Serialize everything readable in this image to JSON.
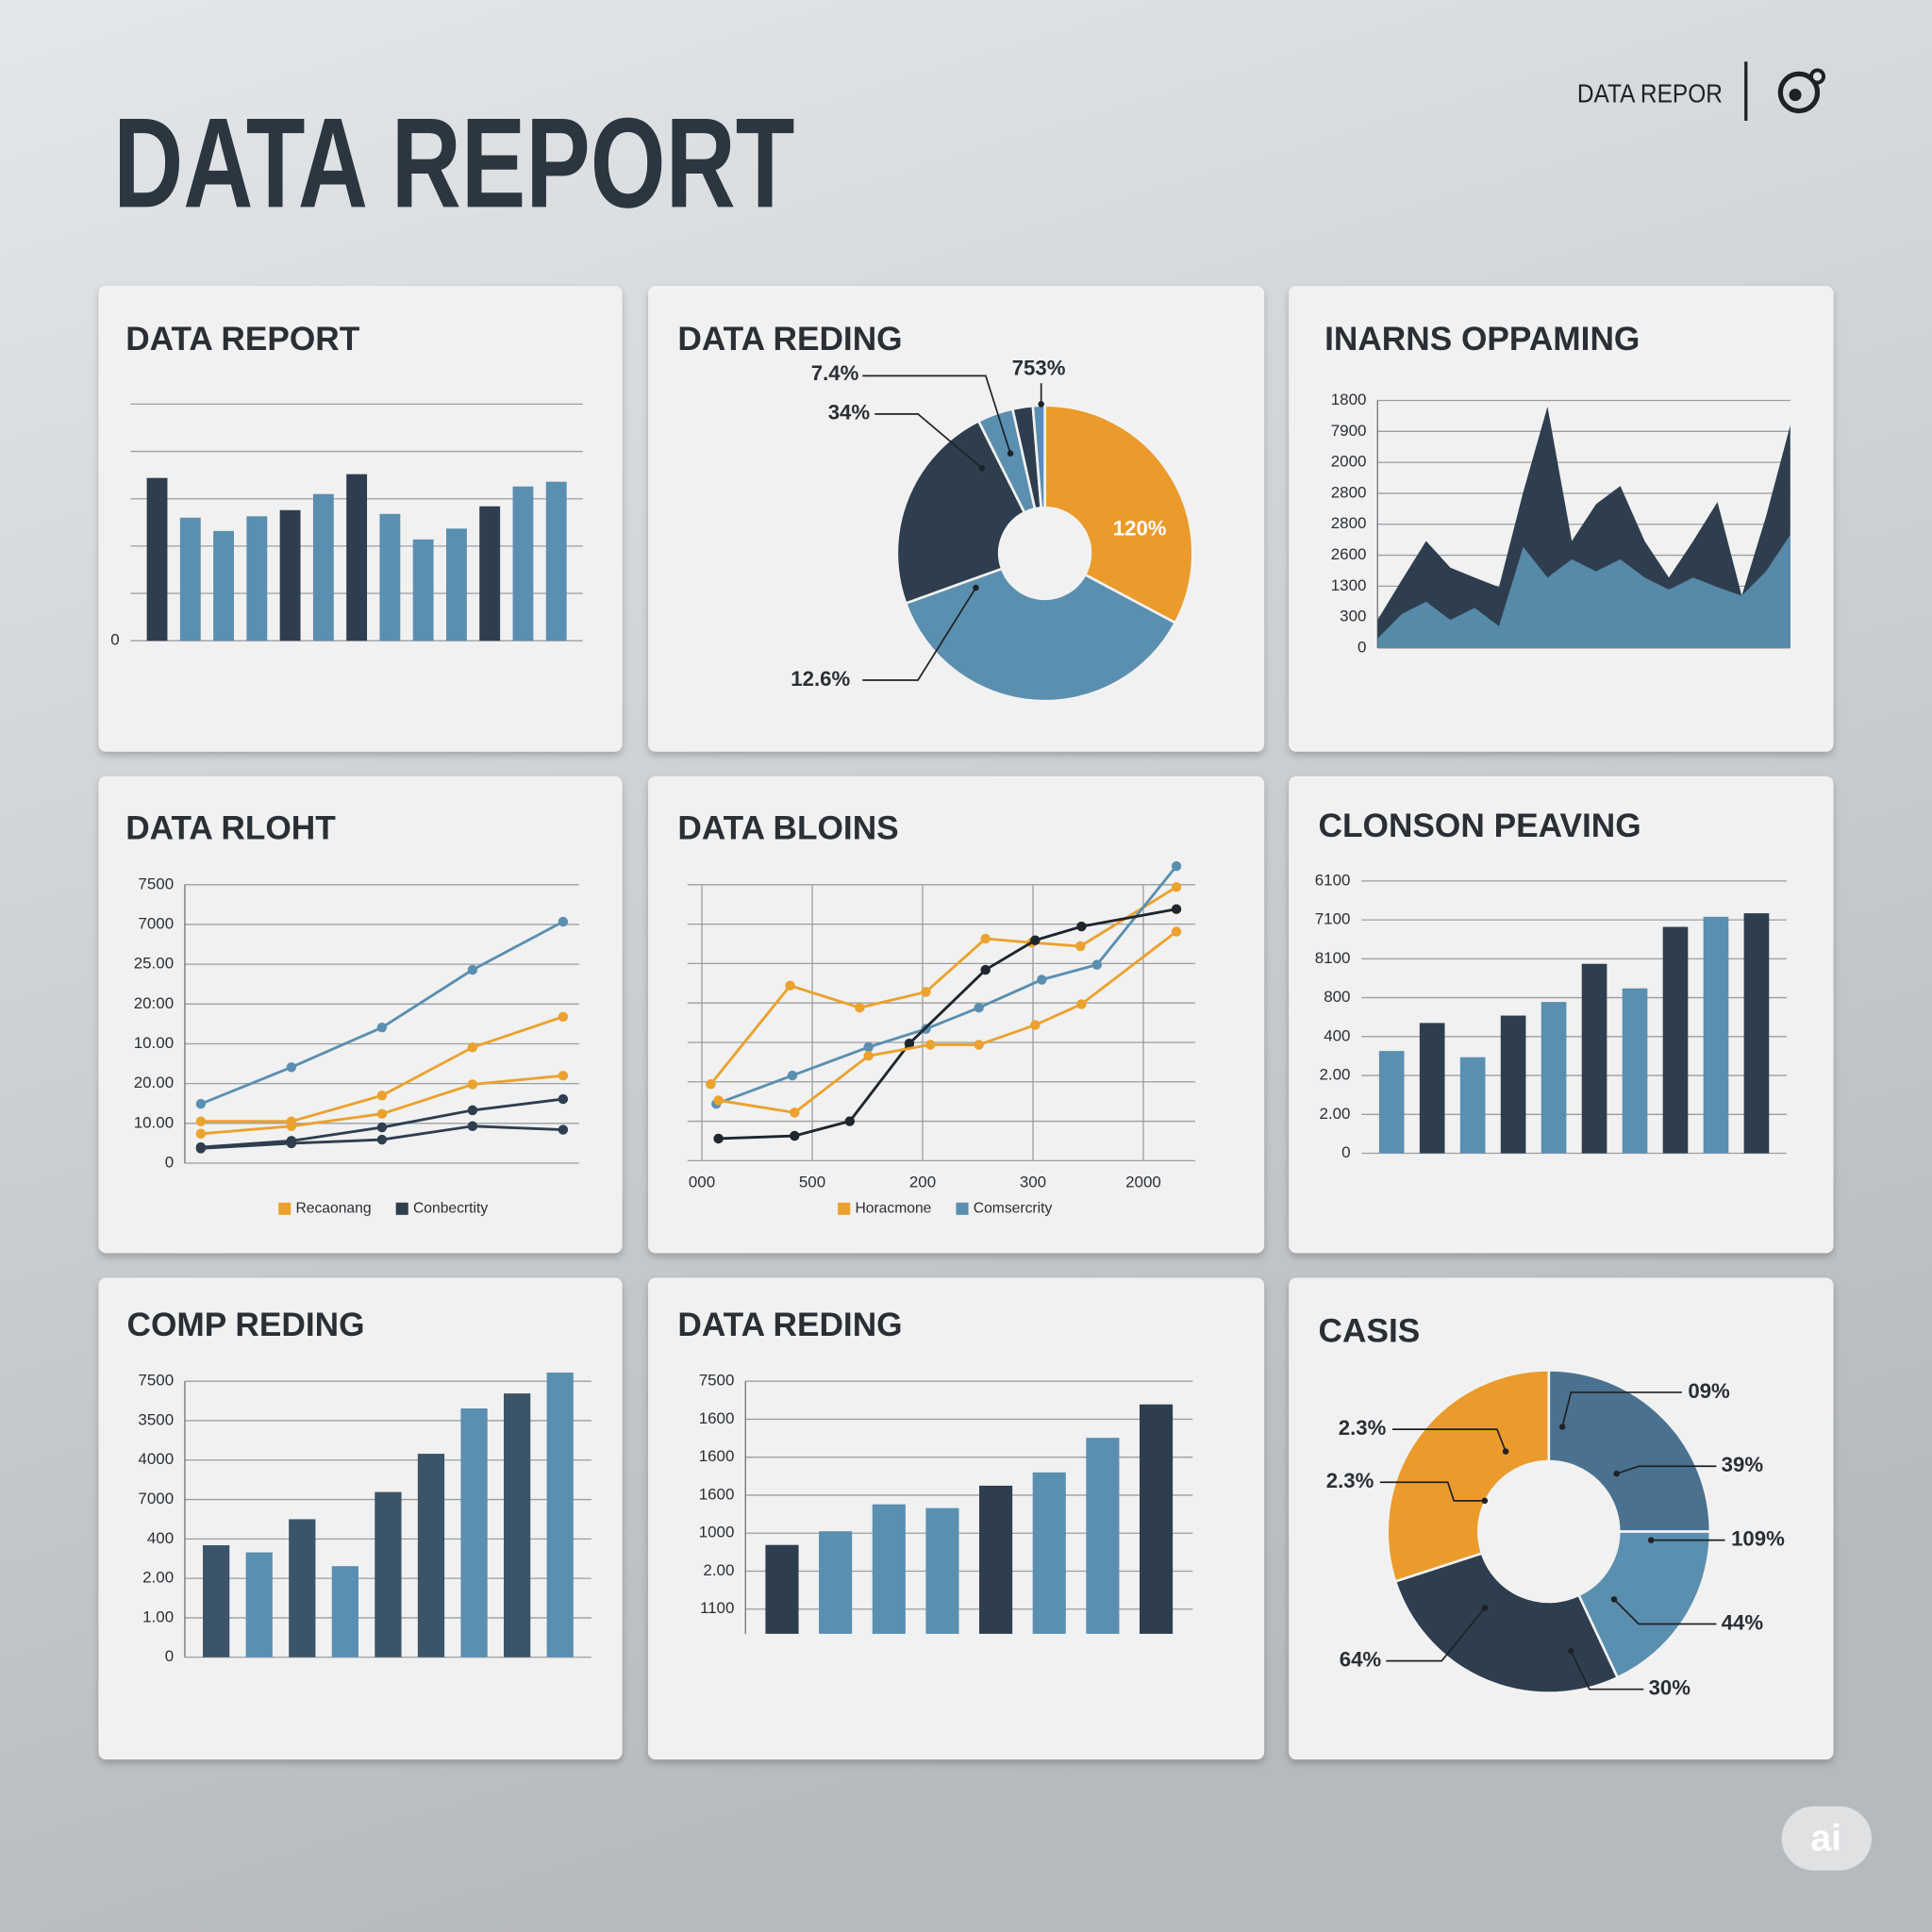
{
  "header": {
    "title": "DATA REPORT",
    "brand": "DATA REPOR",
    "badge": "ai"
  },
  "chart_data": [
    {
      "type": "bar",
      "title": "DATA REPORT",
      "categories": [
        null,
        null,
        null,
        null,
        null,
        null,
        null,
        null,
        null,
        null,
        null,
        null,
        null
      ],
      "values": [
        3.44,
        2.6,
        2.32,
        2.63,
        2.76,
        3.1,
        3.52,
        2.68,
        2.14,
        2.37,
        2.84,
        3.26,
        3.36
      ],
      "colors": [
        "#2e3e4e",
        "#5b8fb0",
        "#5b8fb0",
        "#5b8fb0",
        "#2e3e4e",
        "#5b8fb0",
        "#2e3e4e",
        "#5b8fb0",
        "#5b8fb0",
        "#5b8fb0",
        "#2e3e4e",
        "#5b8fb0",
        "#5b8fb0"
      ],
      "ylim": [
        0,
        5
      ],
      "yticks": [
        0
      ],
      "gridlines": [
        1,
        2,
        3,
        4,
        5
      ]
    },
    {
      "type": "pie",
      "title": "DATA REDING",
      "values": [
        32.8,
        36.7,
        23.1,
        3.9,
        2.2,
        1.3
      ],
      "colors": [
        "#eb9b2c",
        "#5b8fb0",
        "#2e3e4e",
        "#5b8fb0",
        "#2e3e4e",
        "#5b8fb0"
      ],
      "annotations": [
        "7.4%",
        "34%",
        "753%",
        "120%",
        "12.6%"
      ]
    },
    {
      "type": "area",
      "title": "INARNS OPPAMING",
      "categories": [
        null,
        null,
        null,
        null,
        null,
        null,
        null,
        null,
        null,
        null,
        null,
        null,
        null,
        null,
        null,
        null,
        null,
        null
      ],
      "series": [
        {
          "color": "#2e3e4e",
          "values": [
            0.91,
            2.2,
            3.46,
            2.6,
            2.28,
            1.97,
            5.04,
            7.8,
            3.46,
            4.65,
            5.24,
            3.46,
            2.28,
            3.46,
            4.72,
            1.69,
            4.25,
            7.2
          ]
        },
        {
          "color": "#5b8fb0",
          "values": [
            0.31,
            1.1,
            1.5,
            0.91,
            1.3,
            0.71,
            3.27,
            2.28,
            2.87,
            2.48,
            2.87,
            2.28,
            1.89,
            2.28,
            1.97,
            1.69,
            2.48,
            3.66
          ]
        }
      ],
      "ylim": [
        0,
        8
      ],
      "yticks": [
        0,
        {
          "value": 1,
          "label": "300"
        },
        {
          "value": 2,
          "label": "1300"
        },
        {
          "value": 3,
          "label": "2600"
        },
        {
          "value": 4,
          "label": "2800"
        },
        {
          "value": 5,
          "label": "2800"
        },
        {
          "value": 6,
          "label": "2000"
        },
        {
          "value": 7,
          "label": "7900"
        },
        {
          "value": 8,
          "label": "1800"
        }
      ]
    },
    {
      "type": "line",
      "title": "DATA RLOHT",
      "categories": [
        null,
        null,
        null,
        null,
        null
      ],
      "series": [
        {
          "color": "#5b8fb0",
          "values": [
            1.49,
            2.41,
            3.41,
            4.86,
            6.07
          ]
        },
        {
          "name": "Recaonang",
          "color": "#eba22e",
          "values": [
            1.05,
            1.05,
            1.7,
            2.91,
            3.68
          ]
        },
        {
          "color": "#eba22e",
          "values": [
            0.74,
            0.93,
            1.24,
            1.98,
            2.2
          ]
        },
        {
          "name": "Conbecrtity",
          "color": "#2e3e4e",
          "values": [
            0.4,
            0.56,
            0.9,
            1.33,
            1.61
          ]
        },
        {
          "color": "#2e3e4e",
          "values": [
            0.37,
            0.5,
            0.59,
            0.93,
            0.84
          ]
        }
      ],
      "ylim": [
        0,
        7
      ],
      "yticks": [
        0,
        {
          "value": 1,
          "label": "10.00"
        },
        {
          "value": 2,
          "label": "20.00"
        },
        {
          "value": 3,
          "label": "10.00"
        },
        {
          "value": 4,
          "label": "20:00"
        },
        {
          "value": 5,
          "label": "25.00"
        },
        {
          "value": 6,
          "label": "7000"
        },
        {
          "value": 7,
          "label": "7500"
        }
      ],
      "legend": "bottom"
    },
    {
      "type": "line",
      "title": "DATA BLOINS",
      "series": [
        {
          "name": "Horacmone",
          "color": "#eba22e",
          "x": [
            0.08,
            0.8,
            1.43,
            2.03,
            2.57,
            2.99,
            3.43,
            4.3
          ],
          "values": [
            1.94,
            4.44,
            3.88,
            4.28,
            5.63,
            5.53,
            5.44,
            6.94
          ]
        },
        {
          "name": "Comsercrity",
          "color": "#5b8fb0",
          "x": [
            0.13,
            0.82,
            1.51,
            2.03,
            2.51,
            3.08,
            3.58,
            4.3
          ],
          "values": [
            1.44,
            2.16,
            2.88,
            3.34,
            3.88,
            4.59,
            4.97,
            7.47
          ]
        },
        {
          "color": "#1f262d",
          "x": [
            0.15,
            0.84,
            1.34,
            1.88,
            2.57,
            3.02,
            3.44,
            4.3
          ],
          "values": [
            0.56,
            0.63,
            1.0,
            2.97,
            4.84,
            5.59,
            5.94,
            6.38
          ]
        },
        {
          "color": "#eba22e",
          "x": [
            0.15,
            0.84,
            1.51,
            2.07,
            2.51,
            3.02,
            3.44,
            4.3
          ],
          "values": [
            1.53,
            1.22,
            2.66,
            2.94,
            2.94,
            3.44,
            3.97,
            5.81
          ]
        }
      ],
      "xlim": [
        -0.13,
        4.47
      ],
      "xticks": [
        {
          "value": 0,
          "label": "000"
        },
        {
          "value": 1,
          "label": "500"
        },
        {
          "value": 2,
          "label": "200"
        },
        {
          "value": 3,
          "label": "300"
        },
        {
          "value": 4,
          "label": "2000"
        }
      ],
      "ylim": [
        0,
        7
      ],
      "gridlines": [
        0,
        1,
        2,
        3,
        4,
        5,
        6,
        7
      ],
      "legend": "bottom"
    },
    {
      "type": "bar",
      "title": "CLONSON PEAVING",
      "categories": [
        null,
        null,
        null,
        null,
        null,
        null,
        null,
        null,
        null,
        null
      ],
      "values": [
        2.63,
        3.35,
        2.47,
        3.54,
        3.89,
        4.87,
        4.24,
        5.82,
        6.08,
        6.17
      ],
      "colors": [
        "#5b8fb0",
        "#2e3e4e",
        "#5b8fb0",
        "#2e3e4e",
        "#5b8fb0",
        "#2e3e4e",
        "#5b8fb0",
        "#2e3e4e",
        "#5b8fb0",
        "#2e3e4e"
      ],
      "ylim": [
        0,
        7
      ],
      "yticks": [
        0,
        {
          "value": 1,
          "label": "2.00"
        },
        {
          "value": 2,
          "label": "2.00"
        },
        {
          "value": 3,
          "label": "400"
        },
        {
          "value": 4,
          "label": "800"
        },
        {
          "value": 5,
          "label": "8100"
        },
        {
          "value": 6,
          "label": "7100"
        },
        {
          "value": 7,
          "label": "6100"
        }
      ]
    },
    {
      "type": "bar",
      "title": "COMP REDING",
      "categories": [
        null,
        null,
        null,
        null,
        null,
        null,
        null,
        null,
        null
      ],
      "values": [
        2.84,
        2.66,
        3.5,
        2.31,
        4.19,
        5.16,
        6.31,
        6.69,
        7.22
      ],
      "colors": [
        "#3c5468",
        "#5b8fb0",
        "#3c5468",
        "#5b8fb0",
        "#3c5468",
        "#3c5468",
        "#5b8fb0",
        "#3c5468",
        "#5b8fb0"
      ],
      "ylim": [
        0,
        7
      ],
      "yticks": [
        0,
        {
          "value": 1,
          "label": "1.00"
        },
        {
          "value": 2,
          "label": "2.00"
        },
        {
          "value": 3,
          "label": "400"
        },
        {
          "value": 4,
          "label": "7000"
        },
        {
          "value": 5,
          "label": "4000"
        },
        {
          "value": 6,
          "label": "3500"
        },
        {
          "value": 7,
          "label": "7500"
        }
      ]
    },
    {
      "type": "bar",
      "title": "DATA REDING",
      "categories": [
        null,
        null,
        null,
        null,
        null,
        null,
        null,
        null
      ],
      "values": [
        2.69,
        3.05,
        3.76,
        3.66,
        4.25,
        4.6,
        5.51,
        6.39
      ],
      "colors": [
        "#2e3e4e",
        "#5b8fb0",
        "#5b8fb0",
        "#5b8fb0",
        "#2e3e4e",
        "#5b8fb0",
        "#5b8fb0",
        "#2e3e4e"
      ],
      "ylim": [
        0.35,
        7
      ],
      "yticks": [
        {
          "value": 1,
          "label": "1100"
        },
        {
          "value": 2,
          "label": "2.00"
        },
        {
          "value": 3,
          "label": "1000"
        },
        {
          "value": 4,
          "label": "1600"
        },
        {
          "value": 5,
          "label": "1600"
        },
        {
          "value": 6,
          "label": "1600"
        },
        {
          "value": 7,
          "label": "7500"
        }
      ]
    },
    {
      "type": "pie",
      "title": "CASIS",
      "values": [
        25,
        18,
        27,
        30
      ],
      "colors": [
        "#4a7290",
        "#5b8fb0",
        "#2e3e4e",
        "#eb9b2c"
      ],
      "annotations": [
        "09%",
        "39%",
        "109%",
        "44%",
        "30%",
        "64%",
        "2.3%",
        "2.3%"
      ]
    }
  ]
}
